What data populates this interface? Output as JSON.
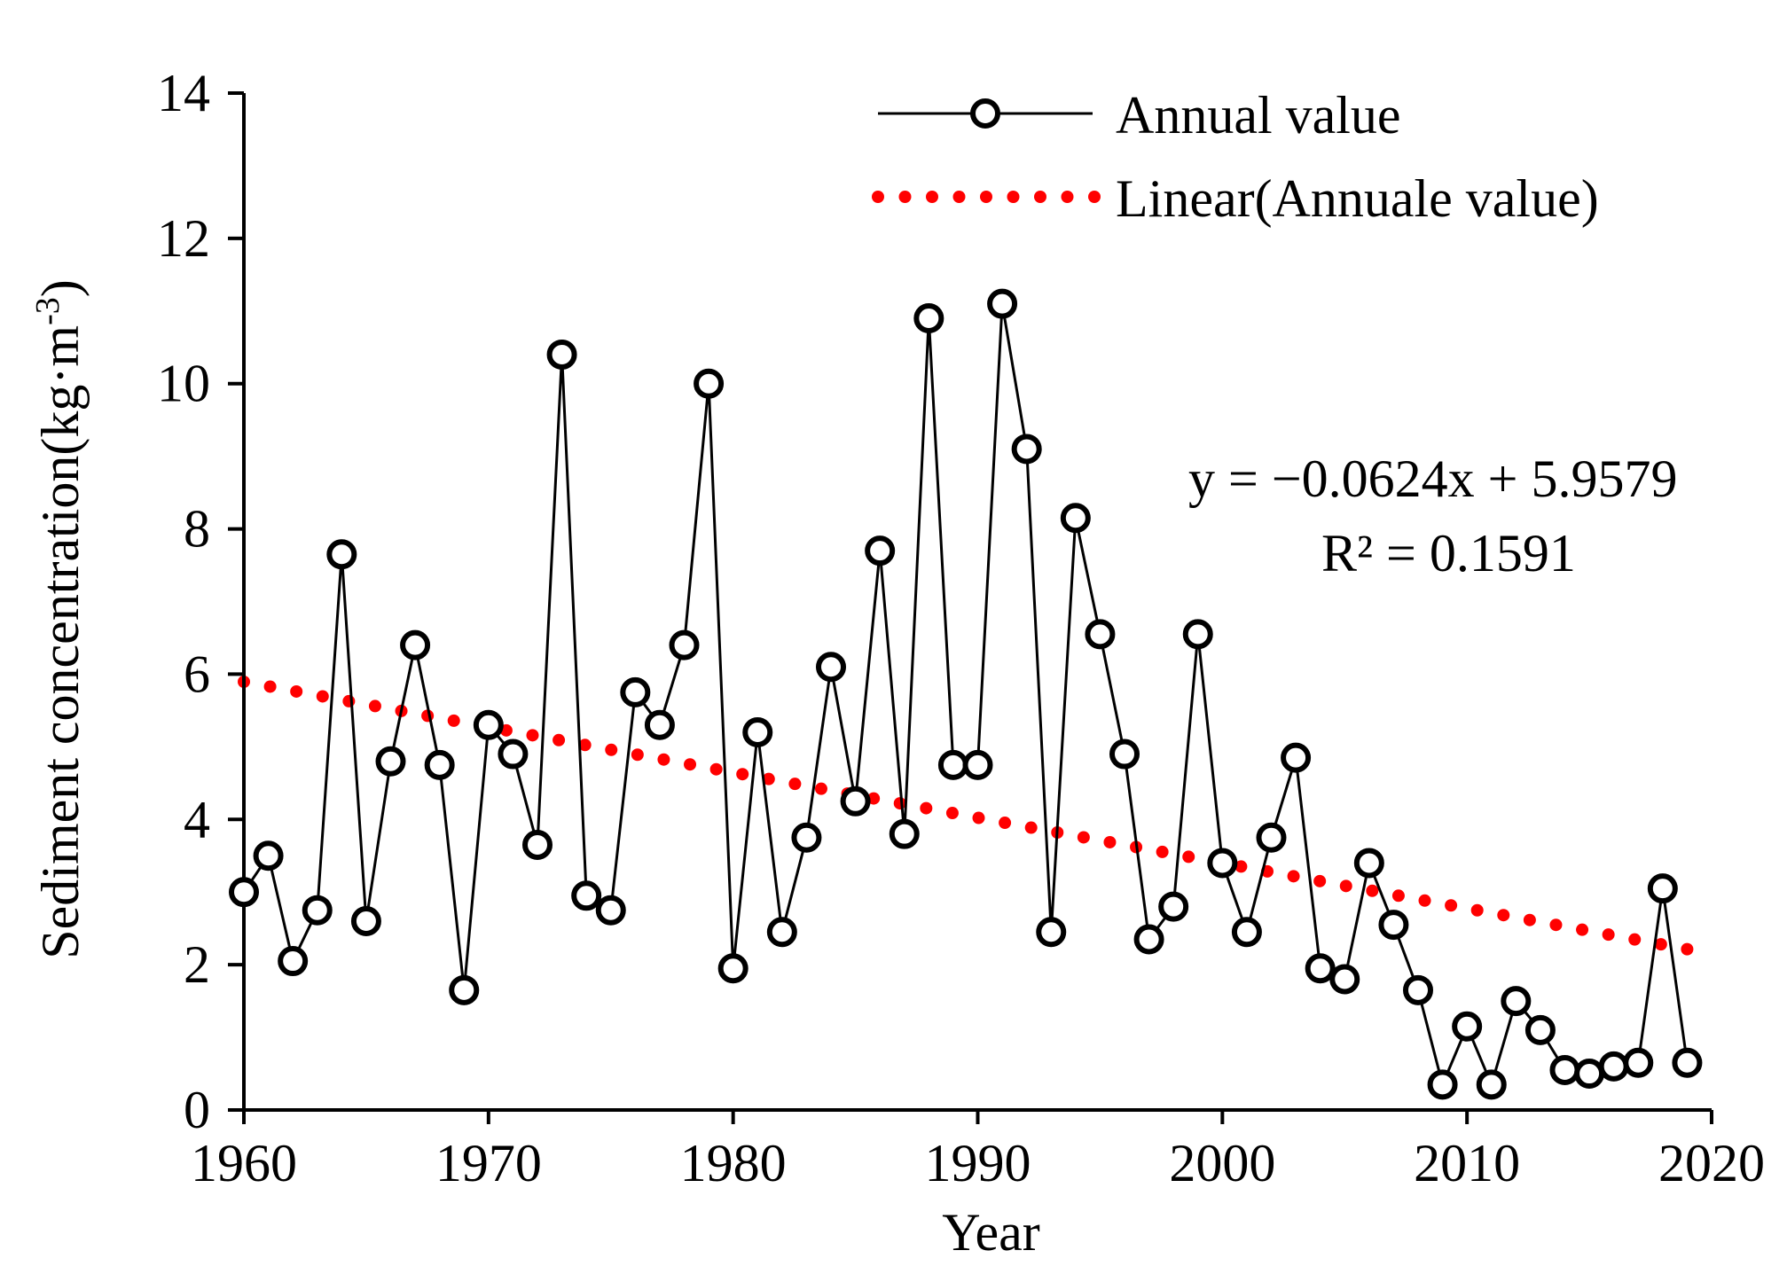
{
  "chart_data": {
    "type": "line",
    "xlabel": "Year",
    "ylabel": "Sediment concentration(kg·m",
    "ylabel_sup": "-3",
    "ylabel_close": ")",
    "xlim": [
      1960,
      2020
    ],
    "ylim": [
      0,
      14
    ],
    "xticks": [
      1960,
      1970,
      1980,
      1990,
      2000,
      2010,
      2020
    ],
    "yticks": [
      0,
      2,
      4,
      6,
      8,
      10,
      12,
      14
    ],
    "grid": false,
    "legend_position": "top-right",
    "series": [
      {
        "name": "Annual value",
        "style": "line-with-open-circles",
        "color": "#000000",
        "x": [
          1960,
          1961,
          1962,
          1963,
          1964,
          1965,
          1966,
          1967,
          1968,
          1969,
          1970,
          1971,
          1972,
          1973,
          1974,
          1975,
          1976,
          1977,
          1978,
          1979,
          1980,
          1981,
          1982,
          1983,
          1984,
          1985,
          1986,
          1987,
          1988,
          1989,
          1990,
          1991,
          1992,
          1993,
          1994,
          1995,
          1996,
          1997,
          1998,
          1999,
          2000,
          2001,
          2002,
          2003,
          2004,
          2005,
          2006,
          2007,
          2008,
          2009,
          2010,
          2011,
          2012,
          2013,
          2014,
          2015,
          2016,
          2017,
          2018,
          2019
        ],
        "values": [
          3.0,
          3.5,
          2.05,
          2.75,
          7.65,
          2.6,
          4.8,
          6.4,
          4.75,
          1.65,
          5.3,
          4.9,
          3.65,
          10.4,
          2.95,
          2.75,
          5.75,
          5.3,
          6.4,
          10.0,
          1.95,
          5.2,
          2.45,
          3.75,
          6.1,
          4.25,
          7.7,
          3.8,
          10.9,
          4.75,
          4.75,
          11.1,
          9.1,
          2.45,
          8.15,
          6.55,
          4.9,
          2.35,
          2.8,
          6.55,
          3.4,
          2.45,
          3.75,
          4.85,
          1.95,
          1.8,
          3.4,
          2.55,
          1.65,
          0.35,
          1.15,
          0.35,
          1.5,
          1.1,
          0.55,
          0.5,
          0.6,
          0.65,
          3.05,
          0.65
        ]
      },
      {
        "name": "Linear(Annuale value)",
        "style": "dotted-trendline",
        "color": "#ff0000",
        "slope": -0.0624,
        "intercept": 5.9579
      }
    ],
    "annotations": {
      "equation": "y = −0.0624x + 5.9579",
      "r_squared": "R² = 0.1591"
    }
  }
}
